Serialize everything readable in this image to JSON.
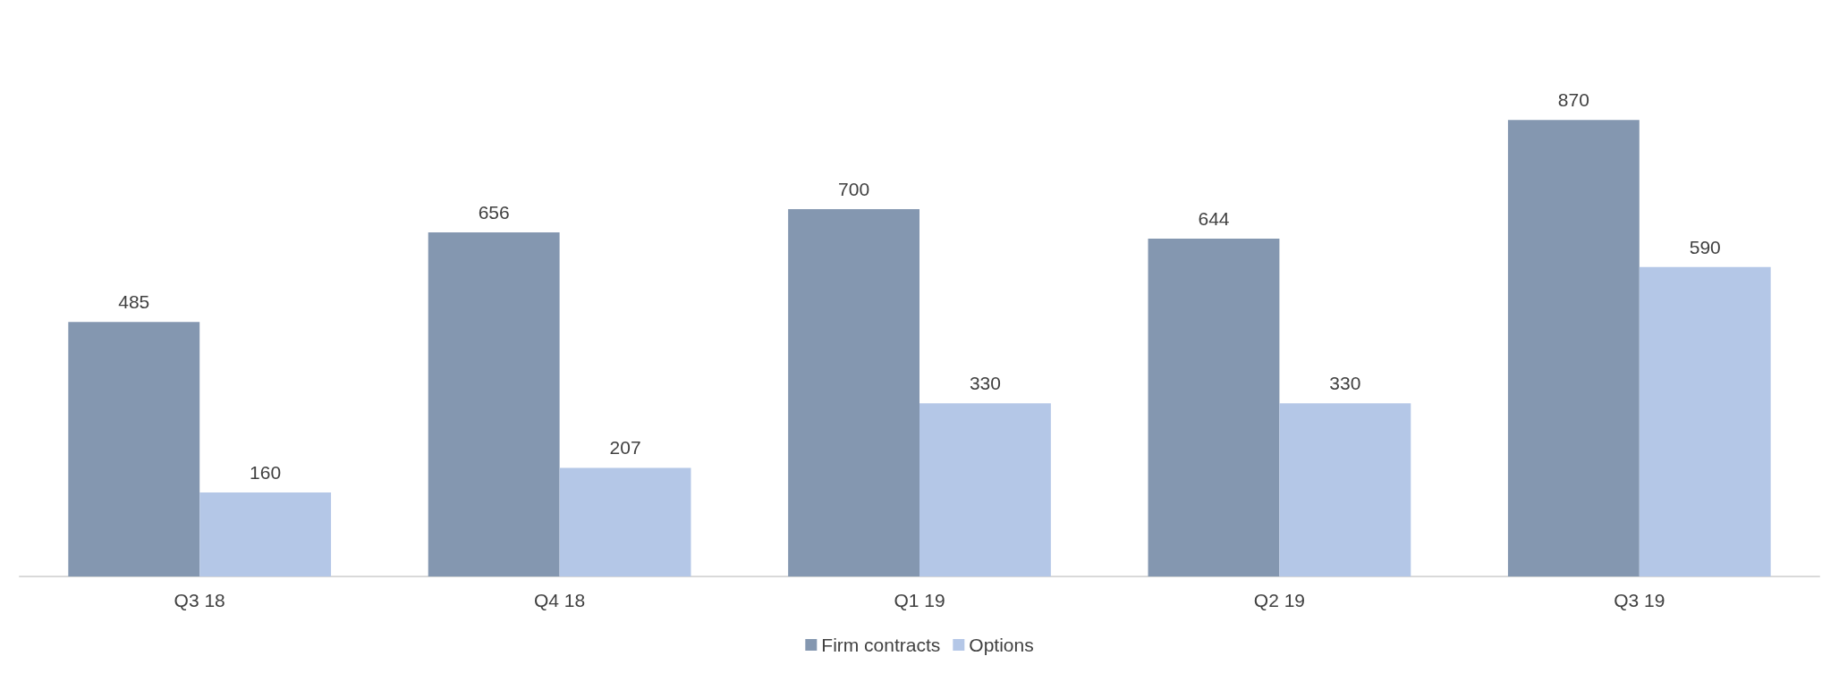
{
  "chart_data": {
    "type": "bar",
    "categories": [
      "Q3 18",
      "Q4 18",
      "Q1 19",
      "Q2 19",
      "Q3 19"
    ],
    "series": [
      {
        "name": "Firm contracts",
        "color": "#8497b0",
        "values": [
          485,
          656,
          700,
          644,
          870
        ]
      },
      {
        "name": "Options",
        "color": "#b4c7e7",
        "values": [
          160,
          207,
          330,
          330,
          590
        ]
      }
    ],
    "data_labels": true,
    "legend": "bottom"
  }
}
